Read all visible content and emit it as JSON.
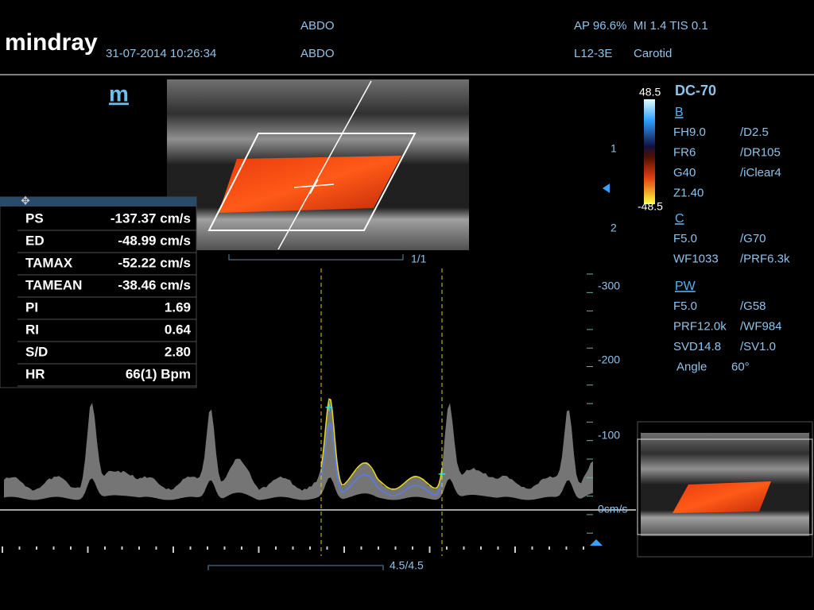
{
  "header": {
    "brand": "mindray",
    "datetime": "31-07-2014 10:26:34",
    "preset_top": "ABDO",
    "preset_bottom": "ABDO",
    "acoustic": "AP 96.6%  MI 1.4 TIS 0.1",
    "probe": "L12-3E",
    "exam": "Carotid"
  },
  "mode_icon": "m",
  "color_bar": {
    "max": "48.5",
    "min": "-48.5",
    "name": "DC-70"
  },
  "params": {
    "b_title": "B",
    "b": [
      [
        "FH9.0",
        "/D2.5"
      ],
      [
        "FR6",
        "/DR105"
      ],
      [
        "G40",
        "/iClear4"
      ],
      [
        "Z1.40"
      ]
    ],
    "c_title": "C",
    "c": [
      [
        "F5.0",
        "/G70"
      ],
      [
        "WF1033",
        "/PRF6.3k"
      ]
    ],
    "pw_title": "PW",
    "pw": [
      [
        "F5.0",
        "/G58"
      ],
      [
        "PRF12.0k",
        "/WF984"
      ],
      [
        "SVD14.8",
        "/SV1.0"
      ],
      [
        "Angle",
        "60°"
      ]
    ]
  },
  "measurements": [
    [
      "PS",
      "-137.37 cm/s"
    ],
    [
      "ED",
      "-48.99 cm/s"
    ],
    [
      "TAMAX",
      "-52.22 cm/s"
    ],
    [
      "TAMEAN",
      "-38.46 cm/s"
    ],
    [
      "PI",
      "1.69"
    ],
    [
      "RI",
      "0.64"
    ],
    [
      "S/D",
      "2.80"
    ],
    [
      "HR",
      "66(1) Bpm"
    ]
  ],
  "depth_marks": [
    "1",
    "2"
  ],
  "image_counter": "1/1",
  "velocity_scale": [
    "-300",
    "-200",
    "-100",
    "0cm/s"
  ],
  "sweep_counter": "4.5/4.5"
}
